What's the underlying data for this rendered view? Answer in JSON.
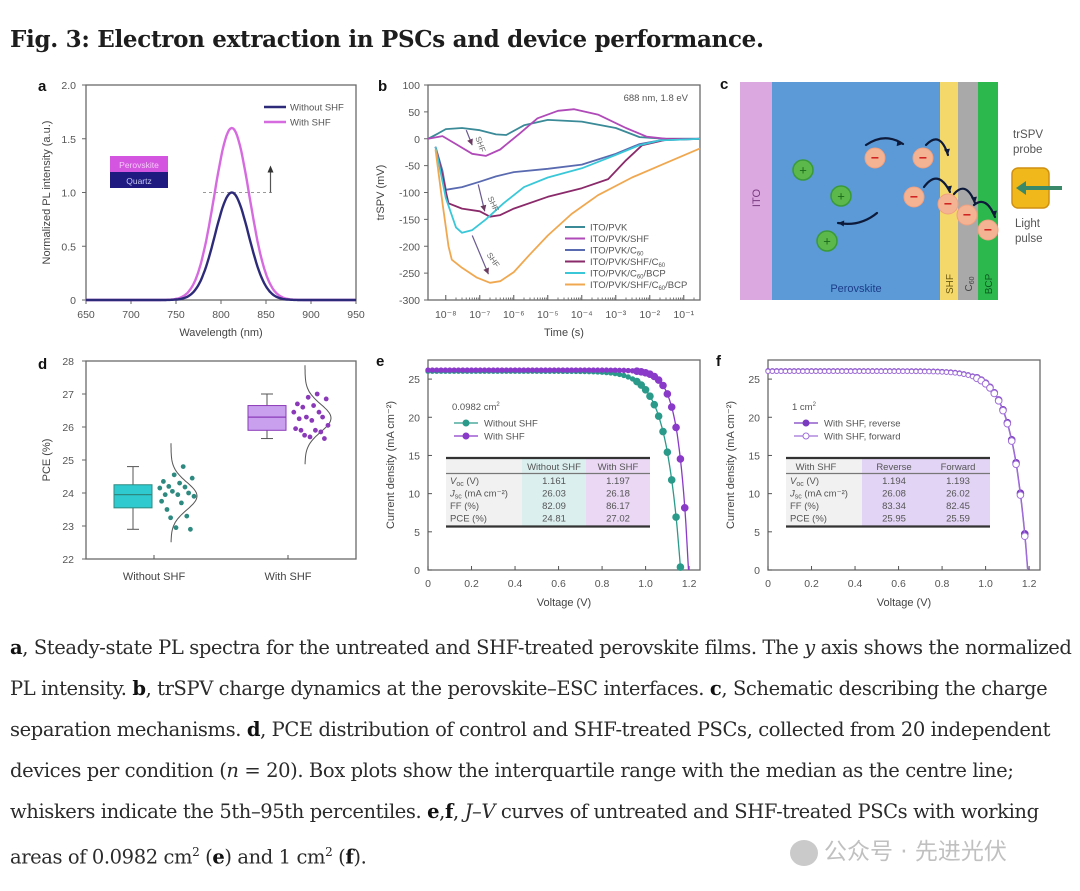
{
  "figure": {
    "title": "Fig. 3: Electron extraction in PSCs and device performance."
  },
  "chart_data": [
    {
      "panel": "a",
      "type": "line",
      "xlabel": "Wavelength (nm)",
      "ylabel": "Normalized PL intensity (a.u.)",
      "xlim": [
        650,
        950
      ],
      "ylim": [
        0,
        2.0
      ],
      "xticks": [
        "650",
        "700",
        "750",
        "800",
        "850",
        "900",
        "950"
      ],
      "yticks": [
        "0",
        "0.5",
        "1.0",
        "1.5",
        "2.0"
      ],
      "grid": false,
      "legend_position": "top-right",
      "series": [
        {
          "name": "Without SHF",
          "color": "#2e2a7a",
          "peak_x": 812,
          "peak_y": 1.0,
          "fwhm": 44
        },
        {
          "name": "With SHF",
          "color": "#d66be0",
          "peak_x": 812,
          "peak_y": 1.6,
          "fwhm": 46
        }
      ],
      "annotations": {
        "reference_line_y": 1.0,
        "arrow": "up",
        "inset_layers": [
          "Perovskite",
          "Quartz"
        ]
      }
    },
    {
      "panel": "b",
      "type": "line",
      "xlabel": "Time (s)",
      "ylabel": "trSPV (mV)",
      "xscale": "log",
      "xlim": [
        3e-09,
        0.3
      ],
      "ylim": [
        -300,
        100
      ],
      "xticks": [
        "10⁻⁸",
        "10⁻⁷",
        "10⁻⁶",
        "10⁻⁵",
        "10⁻⁴",
        "10⁻³",
        "10⁻²",
        "10⁻¹"
      ],
      "yticks": [
        "100",
        "50",
        "0",
        "-50",
        "-100",
        "-150",
        "-200",
        "-250",
        "-300"
      ],
      "annotation": "688 nm, 1.8 eV",
      "arrow_labels": [
        "SHF",
        "SHF",
        "SHF"
      ],
      "legend_position": "bottom-right",
      "series": [
        {
          "name": "ITO/PVK",
          "color": "#3a8a98",
          "points": [
            [
              3e-09,
              0
            ],
            [
              6e-09,
              10
            ],
            [
              1e-08,
              18
            ],
            [
              3e-08,
              20
            ],
            [
              1e-07,
              16
            ],
            [
              3e-07,
              8
            ],
            [
              6e-07,
              7
            ],
            [
              2e-06,
              25
            ],
            [
              1e-05,
              35
            ],
            [
              0.0001,
              32
            ],
            [
              0.001,
              20
            ],
            [
              0.005,
              3
            ],
            [
              0.03,
              0
            ],
            [
              0.3,
              0
            ]
          ]
        },
        {
          "name": "ITO/PVK/SHF",
          "color": "#b04ab8",
          "points": [
            [
              3e-09,
              0
            ],
            [
              8e-09,
              5
            ],
            [
              2e-08,
              -10
            ],
            [
              6e-08,
              -28
            ],
            [
              1.5e-07,
              -32
            ],
            [
              4e-07,
              -20
            ],
            [
              1.5e-06,
              10
            ],
            [
              5e-06,
              38
            ],
            [
              2e-05,
              52
            ],
            [
              6e-05,
              55
            ],
            [
              0.0003,
              45
            ],
            [
              0.002,
              20
            ],
            [
              0.008,
              4
            ],
            [
              0.03,
              0
            ],
            [
              0.3,
              0
            ]
          ]
        },
        {
          "name": "ITO/PVK/C60",
          "color": "#5a6ab0",
          "points": [
            [
              5e-09,
              -15
            ],
            [
              8e-09,
              -60
            ],
            [
              1e-08,
              -95
            ],
            [
              3e-08,
              -90
            ],
            [
              1e-07,
              -80
            ],
            [
              3e-07,
              -70
            ],
            [
              1e-06,
              -62
            ],
            [
              1e-05,
              -56
            ],
            [
              0.0001,
              -48
            ],
            [
              0.001,
              -28
            ],
            [
              0.005,
              -10
            ],
            [
              0.02,
              -3
            ],
            [
              0.3,
              0
            ]
          ]
        },
        {
          "name": "ITO/PVK/SHF/C60",
          "color": "#8a2a6a",
          "points": [
            [
              5e-09,
              -15
            ],
            [
              8e-09,
              -70
            ],
            [
              1.2e-08,
              -120
            ],
            [
              3e-08,
              -130
            ],
            [
              1e-07,
              -135
            ],
            [
              2e-07,
              -145
            ],
            [
              4e-07,
              -142
            ],
            [
              1e-06,
              -130
            ],
            [
              1e-05,
              -108
            ],
            [
              0.0001,
              -92
            ],
            [
              0.0006,
              -75
            ],
            [
              0.002,
              -40
            ],
            [
              0.006,
              -12
            ],
            [
              0.03,
              -2
            ],
            [
              0.3,
              0
            ]
          ]
        },
        {
          "name": "ITO/PVK/C60/BCP",
          "color": "#3ac8d8",
          "points": [
            [
              5e-09,
              -15
            ],
            [
              1e-08,
              -110
            ],
            [
              2e-08,
              -165
            ],
            [
              3e-08,
              -175
            ],
            [
              6e-08,
              -170
            ],
            [
              1.5e-07,
              -150
            ],
            [
              5e-07,
              -120
            ],
            [
              2e-06,
              -90
            ],
            [
              1e-05,
              -72
            ],
            [
              0.0001,
              -55
            ],
            [
              0.001,
              -30
            ],
            [
              0.005,
              -12
            ],
            [
              0.02,
              -3
            ],
            [
              0.3,
              0
            ]
          ]
        },
        {
          "name": "ITO/PVK/SHF/C60/BCP",
          "color": "#f0a850",
          "points": [
            [
              5e-09,
              -20
            ],
            [
              8e-09,
              -120
            ],
            [
              1.2e-08,
              -200
            ],
            [
              1.5e-08,
              -225
            ],
            [
              3e-08,
              -240
            ],
            [
              8e-08,
              -258
            ],
            [
              2e-07,
              -268
            ],
            [
              4e-07,
              -265
            ],
            [
              1e-06,
              -248
            ],
            [
              3e-06,
              -215
            ],
            [
              1e-05,
              -180
            ],
            [
              5e-05,
              -140
            ],
            [
              0.0003,
              -105
            ],
            [
              0.003,
              -72
            ],
            [
              0.03,
              -45
            ],
            [
              0.3,
              -18
            ]
          ]
        }
      ]
    },
    {
      "panel": "d",
      "type": "box",
      "ylabel": "PCE (%)",
      "ylim": [
        22,
        28
      ],
      "yticks": [
        "22",
        "23",
        "24",
        "25",
        "26",
        "27",
        "28"
      ],
      "categories": [
        "Without SHF",
        "With SHF"
      ],
      "series": [
        {
          "name": "Without SHF",
          "color": "#2ecad0",
          "dot_color": "#2e8a80",
          "q1": 23.55,
          "median": 23.95,
          "q3": 24.25,
          "whisker_low": 22.9,
          "whisker_high": 24.8,
          "points": [
            24.8,
            24.55,
            24.45,
            24.35,
            24.3,
            24.2,
            24.18,
            24.15,
            24.05,
            24.0,
            23.95,
            23.95,
            23.9,
            23.75,
            23.7,
            23.5,
            23.3,
            23.25,
            22.95,
            22.9
          ]
        },
        {
          "name": "With SHF",
          "color": "#c9a0ee",
          "dot_color": "#8a3ab8",
          "q1": 25.9,
          "median": 26.3,
          "q3": 26.65,
          "whisker_low": 25.65,
          "whisker_high": 27.0,
          "points": [
            27.0,
            26.9,
            26.85,
            26.7,
            26.65,
            26.6,
            26.45,
            26.45,
            26.3,
            26.3,
            26.25,
            26.2,
            26.05,
            25.95,
            25.9,
            25.9,
            25.85,
            25.75,
            25.7,
            25.65
          ]
        }
      ]
    },
    {
      "panel": "e",
      "type": "line",
      "xlabel": "Voltage (V)",
      "ylabel": "Current density (mA cm⁻²)",
      "xlim": [
        0,
        1.25
      ],
      "ylim": [
        0,
        27.5
      ],
      "xticks": [
        "0",
        "0.2",
        "0.4",
        "0.6",
        "0.8",
        "1.0",
        "1.2"
      ],
      "yticks": [
        "0",
        "5",
        "10",
        "15",
        "20",
        "25"
      ],
      "legend_title": "0.0982 cm²",
      "series": [
        {
          "name": "Without SHF",
          "color": "#2a9a8a",
          "voc": 1.161,
          "jsc": 26.03,
          "ff": 82.09,
          "pce": 24.81,
          "marker": "filled"
        },
        {
          "name": "With SHF",
          "color": "#8a3ac8",
          "voc": 1.197,
          "jsc": 26.18,
          "ff": 86.17,
          "pce": 27.02,
          "marker": "filled"
        }
      ],
      "table": {
        "headers": [
          "",
          "Without SHF",
          "With SHF"
        ],
        "rows": [
          [
            "V_OC (V)",
            "1.161",
            "1.197"
          ],
          [
            "J_SC (mA cm⁻²)",
            "26.03",
            "26.18"
          ],
          [
            "FF (%)",
            "82.09",
            "86.17"
          ],
          [
            "PCE (%)",
            "24.81",
            "27.02"
          ]
        ]
      }
    },
    {
      "panel": "f",
      "type": "line",
      "xlabel": "Voltage (V)",
      "ylabel": "Current density (mA cm⁻²)",
      "xlim": [
        0,
        1.25
      ],
      "ylim": [
        0,
        27.5
      ],
      "xticks": [
        "0",
        "0.2",
        "0.4",
        "0.6",
        "0.8",
        "1.0",
        "1.2"
      ],
      "yticks": [
        "0",
        "5",
        "10",
        "15",
        "20",
        "25"
      ],
      "legend_title": "1 cm²",
      "series": [
        {
          "name": "With SHF, reverse",
          "color": "#7a3ac0",
          "voc": 1.194,
          "jsc": 26.08,
          "ff": 83.34,
          "pce": 25.95,
          "marker": "filled"
        },
        {
          "name": "With SHF, forward",
          "color": "#a070d8",
          "voc": 1.193,
          "jsc": 26.02,
          "ff": 82.45,
          "pce": 25.59,
          "marker": "open"
        }
      ],
      "table": {
        "headers": [
          "With SHF",
          "Reverse",
          "Forward"
        ],
        "rows": [
          [
            "V_OC (V)",
            "1.194",
            "1.193"
          ],
          [
            "J_SC (mA cm⁻²)",
            "26.08",
            "26.02"
          ],
          [
            "FF (%)",
            "83.34",
            "82.45"
          ],
          [
            "PCE (%)",
            "25.95",
            "25.59"
          ]
        ]
      }
    }
  ],
  "panels": {
    "a": {
      "label": "a"
    },
    "b": {
      "label": "b"
    },
    "c": {
      "label": "c",
      "layers": [
        "ITO",
        "Perovskite",
        "SHF",
        "C60",
        "BCP"
      ],
      "probe_label_1": "trSPV",
      "probe_label_2": "probe",
      "pulse_label_1": "Light",
      "pulse_label_2": "pulse",
      "hole_symbol": "+",
      "electron_symbol": "−",
      "colors": {
        "ito": "#dba8e0",
        "perovskite": "#5b9ad6",
        "shf": "#f5d86a",
        "c60": "#a9a9a9",
        "bcp": "#2db84e",
        "hole": "#5cb84a",
        "electron": "#f4b494",
        "probe": "#f0b81a"
      }
    },
    "d": {
      "label": "d"
    },
    "e": {
      "label": "e"
    },
    "f": {
      "label": "f"
    }
  },
  "caption": {
    "parts": [
      {
        "b": "a"
      },
      {
        "t": ", Steady-state PL spectra for the untreated and SHF-treated perovskite films. The "
      },
      {
        "i": "y"
      },
      {
        "t": " axis shows the normalized PL intensity. "
      },
      {
        "b": "b"
      },
      {
        "t": ", trSPV charge dynamics at the perovskite–ESC interfaces. "
      },
      {
        "b": "c"
      },
      {
        "t": ", Schematic describing the charge separation mechanisms. "
      },
      {
        "b": "d"
      },
      {
        "t": ", PCE distribution of control and SHF-treated PSCs, collected from 20 independent devices per condition ("
      },
      {
        "i": "n"
      },
      {
        "t": " = 20). Box plots show the interquartile range with the median as the centre line; whiskers indicate the 5th–95th percentiles. "
      },
      {
        "b": "e"
      },
      {
        "t": ","
      },
      {
        "b": "f"
      },
      {
        "t": ", "
      },
      {
        "i": "J–V"
      },
      {
        "t": " curves of untreated and SHF-treated PSCs with working areas of 0.0982 cm"
      },
      {
        "sup": "2"
      },
      {
        "t": " ("
      },
      {
        "b": "e"
      },
      {
        "t": ") and 1 cm"
      },
      {
        "sup": "2"
      },
      {
        "t": " ("
      },
      {
        "b": "f"
      },
      {
        "t": ")."
      }
    ]
  },
  "watermark": {
    "text": "公众号 · 先进光伏"
  }
}
